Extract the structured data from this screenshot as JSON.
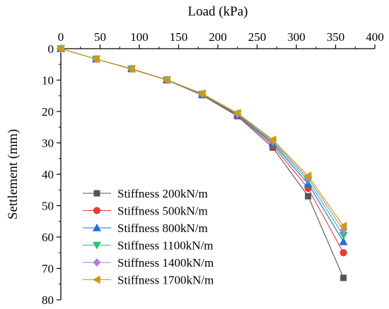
{
  "chart_data": {
    "type": "line",
    "xlabel": "Load (kPa)",
    "ylabel": "Settlement (mm)",
    "xlim": [
      0,
      400
    ],
    "ylim": [
      0,
      80
    ],
    "x_axis_position": "top",
    "y_axis_inverted": true,
    "grid": false,
    "legend_placement": "bottom-left",
    "x_ticks": [
      "0",
      "50",
      "100",
      "150",
      "200",
      "250",
      "300",
      "350",
      "400"
    ],
    "y_ticks": [
      "0",
      "10",
      "20",
      "30",
      "40",
      "50",
      "60",
      "70",
      "80"
    ],
    "x": [
      0,
      45,
      90,
      135,
      180,
      225,
      270,
      315,
      360
    ],
    "series": [
      {
        "name": "Stiffness 200kN/m",
        "color": "#555555",
        "marker": "square",
        "values": [
          0,
          3.3,
          6.5,
          10.0,
          14.8,
          21.5,
          31.5,
          47.0,
          73.0
        ]
      },
      {
        "name": "Stiffness 500kN/m",
        "color": "#e8383d",
        "marker": "circle",
        "values": [
          0,
          3.3,
          6.4,
          10.0,
          14.7,
          21.2,
          30.8,
          44.5,
          65.0
        ]
      },
      {
        "name": "Stiffness 800kN/m",
        "color": "#1e6fd9",
        "marker": "triangle-up",
        "values": [
          0,
          3.3,
          6.4,
          10.0,
          14.6,
          21.0,
          30.2,
          43.0,
          61.5
        ]
      },
      {
        "name": "Stiffness 1100kN/m",
        "color": "#2fbf71",
        "marker": "triangle-down",
        "values": [
          0,
          3.3,
          6.4,
          9.9,
          14.5,
          20.9,
          29.8,
          42.0,
          59.5
        ]
      },
      {
        "name": "Stiffness 1400kN/m",
        "color": "#b57bd9",
        "marker": "diamond",
        "values": [
          0,
          3.3,
          6.4,
          9.9,
          14.4,
          20.7,
          29.4,
          41.2,
          57.8
        ]
      },
      {
        "name": "Stiffness 1700kN/m",
        "color": "#c9a000",
        "marker": "triangle-left",
        "values": [
          0,
          3.3,
          6.4,
          9.9,
          14.3,
          20.5,
          29.0,
          40.5,
          56.5
        ]
      }
    ]
  }
}
